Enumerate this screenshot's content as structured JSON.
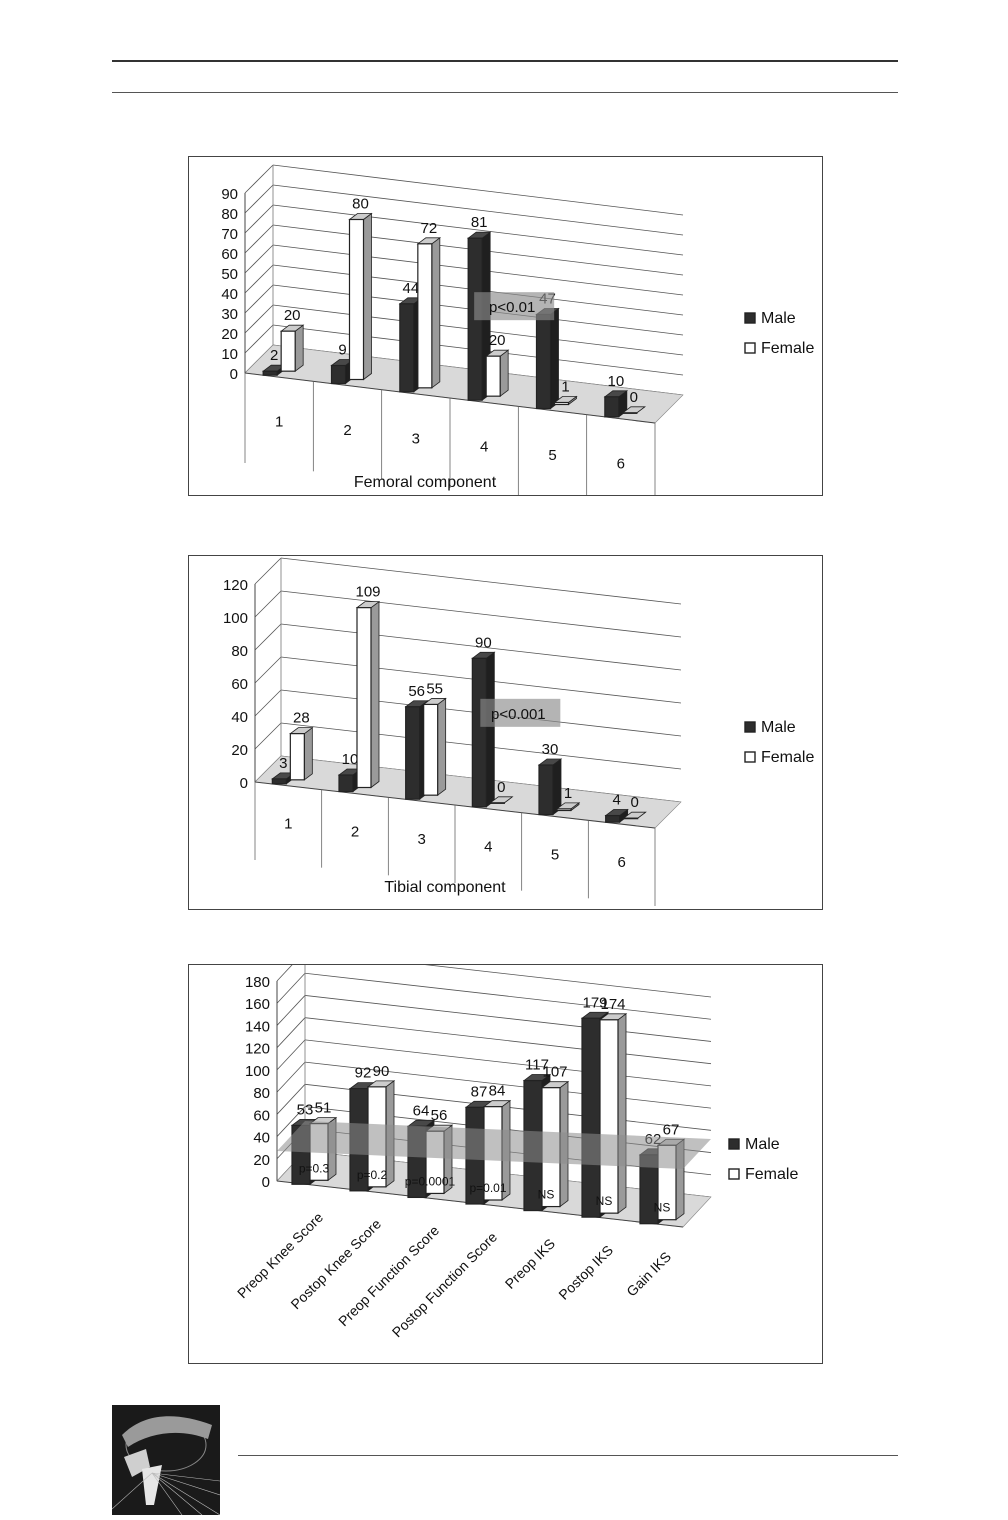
{
  "chart_data": [
    {
      "type": "bar",
      "xlabel": "Femoral component",
      "ylabel": "",
      "categories": [
        "1",
        "2",
        "3",
        "4",
        "5",
        "6"
      ],
      "ylim": [
        0,
        90
      ],
      "yticks": [
        0,
        10,
        20,
        30,
        40,
        50,
        60,
        70,
        80,
        90
      ],
      "series": [
        {
          "name": "Male",
          "values": [
            2,
            9,
            44,
            81,
            47,
            10
          ]
        },
        {
          "name": "Female",
          "values": [
            20,
            80,
            72,
            20,
            1,
            0
          ]
        }
      ],
      "annotations": [
        {
          "text": "p<0.01",
          "category_index": 3
        }
      ],
      "legend": "right",
      "grid": true,
      "style": "3d-column",
      "colors": {
        "Male": "#2d2d2d",
        "Female": "#ffffff"
      }
    },
    {
      "type": "bar",
      "xlabel": "Tibial component",
      "ylabel": "",
      "categories": [
        "1",
        "2",
        "3",
        "4",
        "5",
        "6"
      ],
      "ylim": [
        0,
        120
      ],
      "yticks": [
        0,
        20,
        40,
        60,
        80,
        100,
        120
      ],
      "series": [
        {
          "name": "Male",
          "values": [
            3,
            10,
            56,
            90,
            30,
            4
          ]
        },
        {
          "name": "Female",
          "values": [
            28,
            109,
            55,
            0,
            1,
            0
          ]
        }
      ],
      "annotations": [
        {
          "text": "p<0.001",
          "category_index": 3
        }
      ],
      "legend": "right",
      "grid": true,
      "style": "3d-column",
      "colors": {
        "Male": "#2d2d2d",
        "Female": "#ffffff"
      }
    },
    {
      "type": "bar",
      "xlabel": "",
      "ylabel": "",
      "categories": [
        "Preop Knee Score",
        "Postop Knee Score",
        "Preop Function Score",
        "Postop Function Score",
        "Preop IKS",
        "Postop IKS",
        "Gain IKS"
      ],
      "ylim": [
        0,
        180
      ],
      "yticks": [
        0,
        20,
        40,
        60,
        80,
        100,
        120,
        140,
        160,
        180
      ],
      "series": [
        {
          "name": "Male",
          "values": [
            53,
            92,
            64,
            87,
            117,
            179,
            62
          ]
        },
        {
          "name": "Female",
          "values": [
            51,
            90,
            56,
            84,
            107,
            174,
            67
          ]
        }
      ],
      "p_values": [
        "p=0.3",
        "p=0.2",
        "p=0.0001",
        "p=0.01",
        "NS",
        "NS",
        "NS"
      ],
      "legend": "right",
      "grid": true,
      "style": "3d-column",
      "colors": {
        "Male": "#2d2d2d",
        "Female": "#ffffff"
      }
    }
  ]
}
